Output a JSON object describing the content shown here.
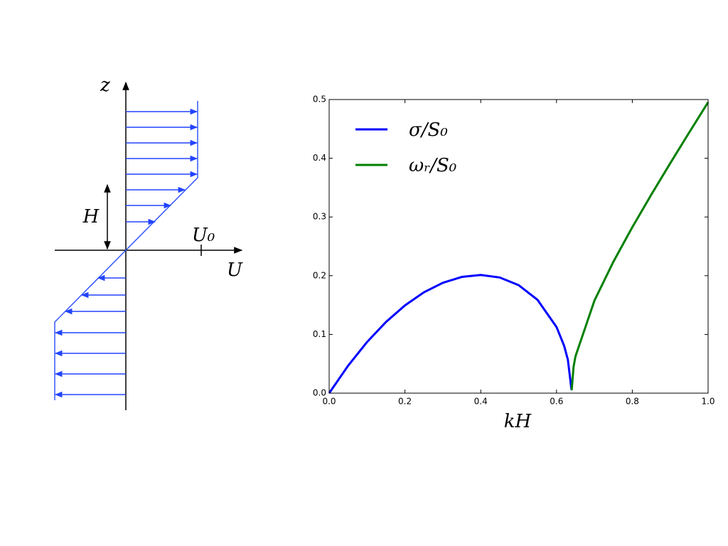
{
  "diagram": {
    "labels": {
      "z": "z",
      "H": "H",
      "U0": "U₀",
      "U": "U"
    }
  },
  "chart_data": {
    "type": "line",
    "xlabel": "kH",
    "xlim": [
      0,
      1
    ],
    "ylim": [
      0,
      0.5
    ],
    "xticks": [
      {
        "value": 0,
        "label": "0.0"
      },
      0.2,
      0.4,
      0.6,
      0.8,
      {
        "value": 1,
        "label": "1.0"
      }
    ],
    "yticks": [
      {
        "value": 0,
        "label": "0.0"
      },
      0.1,
      0.2,
      0.3,
      0.4,
      0.5
    ],
    "legend": "upper-left",
    "series": [
      {
        "name": "σ/S₀",
        "color": "#0000ff",
        "x": [
          0,
          0.05,
          0.1,
          0.15,
          0.2,
          0.25,
          0.3,
          0.35,
          0.4,
          0.45,
          0.5,
          0.55,
          0.6,
          0.62,
          0.63,
          0.639,
          0.64
        ],
        "values": [
          0,
          0.0467,
          0.0871,
          0.1212,
          0.1494,
          0.1717,
          0.1879,
          0.1979,
          0.2012,
          0.197,
          0.1839,
          0.1588,
          0.1126,
          0.0808,
          0.0568,
          0.0087,
          0.005
        ]
      },
      {
        "name": "ωᵣ/S₀",
        "color": "#008000",
        "x": [
          0.64,
          0.645,
          0.65,
          0.7,
          0.75,
          0.8,
          0.85,
          0.9,
          0.95,
          1.0
        ],
        "values": [
          0.005,
          0.045,
          0.0627,
          0.1575,
          0.2237,
          0.2825,
          0.3379,
          0.3914,
          0.4437,
          0.4954
        ]
      }
    ]
  }
}
